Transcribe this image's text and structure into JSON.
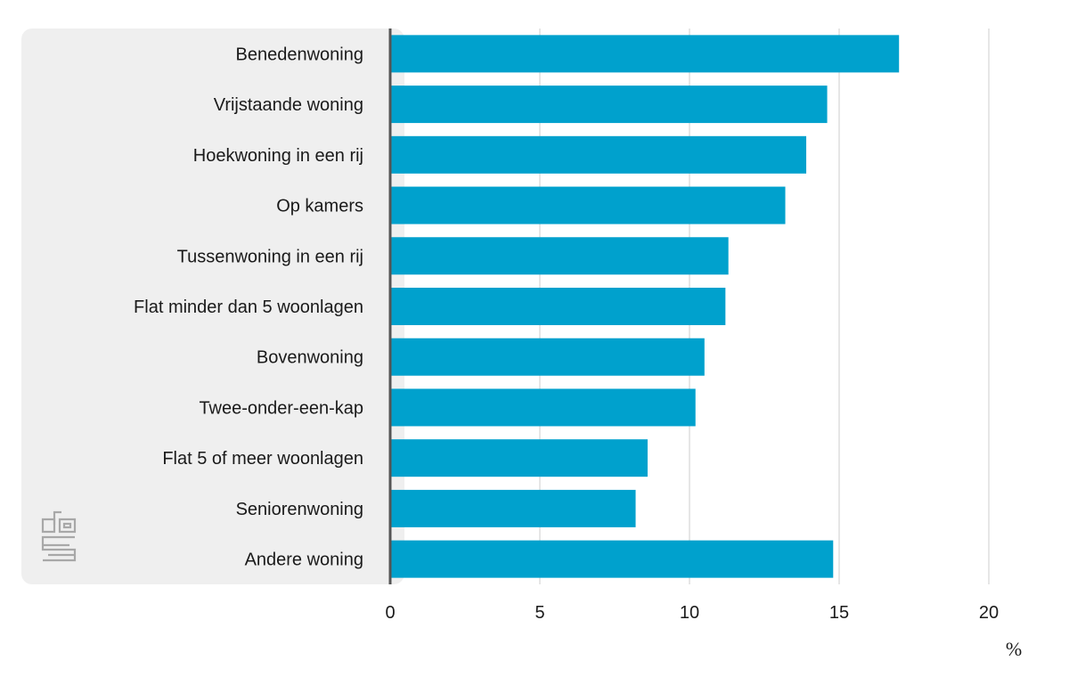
{
  "chart_data": {
    "type": "bar",
    "orientation": "horizontal",
    "categories": [
      "Benedenwoning",
      "Vrijstaande woning",
      "Hoekwoning in een rij",
      "Op kamers",
      "Tussenwoning in een rij",
      "Flat minder dan 5 woonlagen",
      "Bovenwoning",
      "Twee-onder-een-kap",
      "Flat 5 of meer woonlagen",
      "Seniorenwoning",
      "Andere woning"
    ],
    "values": [
      17.0,
      14.6,
      13.9,
      13.2,
      11.3,
      11.2,
      10.5,
      10.2,
      8.6,
      8.2,
      14.8
    ],
    "xlim": [
      0,
      20
    ],
    "xticks": [
      0,
      5,
      10,
      15,
      20
    ],
    "xtick_labels": [
      "0",
      "5",
      "10",
      "15",
      "20"
    ],
    "xlabel": "%",
    "grid": "vertical",
    "bar_color": "#00a1cd",
    "label_panel_color": "#efefef",
    "gridline_color": "#cccccc",
    "axis_color": "#555555",
    "logo": "cbs-logo"
  }
}
